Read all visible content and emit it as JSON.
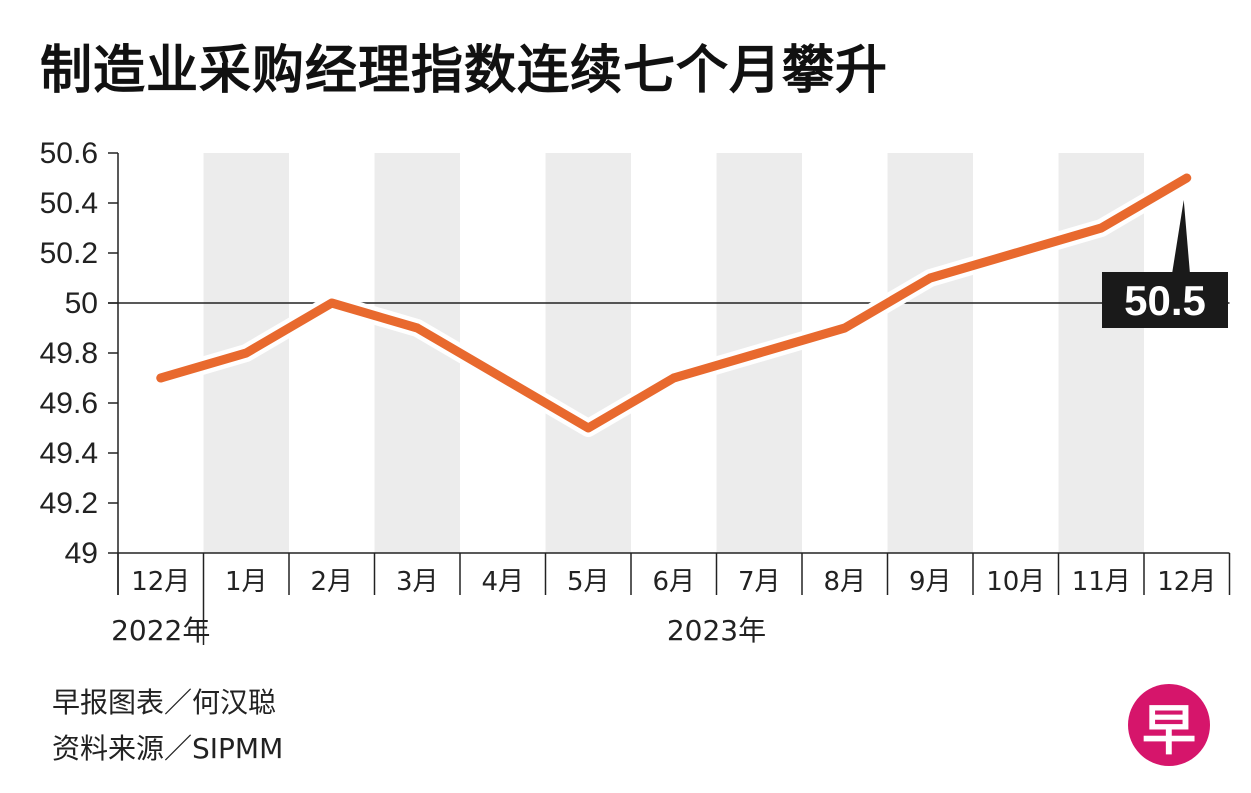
{
  "title": "制造业采购经理指数连续七个月攀升",
  "chart_data": {
    "type": "line",
    "title": "制造业采购经理指数连续七个月攀升",
    "categories": [
      "12月",
      "1月",
      "2月",
      "3月",
      "4月",
      "5月",
      "6月",
      "7月",
      "8月",
      "9月",
      "10月",
      "11月",
      "12月"
    ],
    "values": [
      49.7,
      49.8,
      50.0,
      49.9,
      49.7,
      49.5,
      49.7,
      49.8,
      49.9,
      50.1,
      50.2,
      50.3,
      50.5
    ],
    "y_ticks": [
      "50.6",
      "50.4",
      "50.2",
      "50",
      "49.8",
      "49.6",
      "49.4",
      "49.2",
      "49"
    ],
    "ylim": [
      49,
      50.6
    ],
    "reference_line": 50,
    "year_labels": [
      {
        "label": "2022年",
        "start": 0,
        "end": 0
      },
      {
        "label": "2023年",
        "start": 1,
        "end": 12
      }
    ],
    "last_value_label": "50.5",
    "line_color": "#e8692e",
    "band_color": "#ececec"
  },
  "credits": {
    "author": "早报图表／何汉聪",
    "source": "资料来源／SIPMM"
  },
  "logo": {
    "text": "早",
    "color": "#d6156b"
  }
}
